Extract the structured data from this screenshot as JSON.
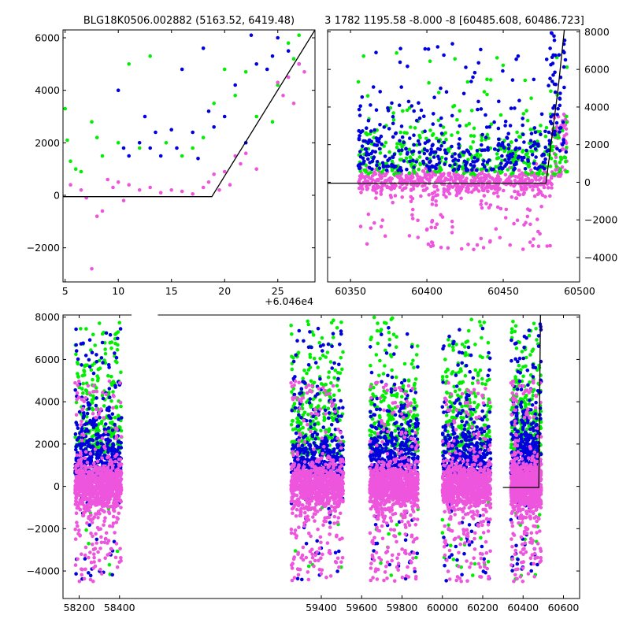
{
  "colors": {
    "green": "#00ee00",
    "blue": "#0000dd",
    "pink": "#ee55dd",
    "model": "#000000"
  },
  "chart_data": [
    {
      "type": "scatter",
      "title": "BLG18K0506.002882 (5163.52, 6419.48)",
      "xlim": [
        4.8,
        28.5
      ],
      "ylim": [
        -3300,
        6300
      ],
      "xticks": [
        5,
        10,
        15,
        20,
        25
      ],
      "yticks": [
        -2000,
        0,
        2000,
        4000,
        6000
      ],
      "x_offset_label": "+6.046e4",
      "model_line": [
        [
          4.8,
          -50
        ],
        [
          18.8,
          -50
        ],
        [
          28.5,
          6300
        ]
      ],
      "series": [
        {
          "color": "green",
          "points": [
            [
              5,
              3300
            ],
            [
              5.2,
              2100
            ],
            [
              5.5,
              1300
            ],
            [
              6,
              1000
            ],
            [
              6.5,
              900
            ],
            [
              7.5,
              2800
            ],
            [
              8,
              2200
            ],
            [
              8.5,
              1500
            ],
            [
              10,
              2000
            ],
            [
              11,
              5000
            ],
            [
              12,
              1800
            ],
            [
              13,
              5300
            ],
            [
              14.5,
              2000
            ],
            [
              16,
              1500
            ],
            [
              17,
              1800
            ],
            [
              18,
              2200
            ],
            [
              19,
              3500
            ],
            [
              20,
              4800
            ],
            [
              21,
              3800
            ],
            [
              22,
              4700
            ],
            [
              23,
              3000
            ],
            [
              24.5,
              2800
            ],
            [
              25,
              4200
            ],
            [
              26,
              5800
            ],
            [
              26.5,
              5200
            ],
            [
              27,
              6100
            ]
          ]
        },
        {
          "color": "blue",
          "points": [
            [
              10,
              4000
            ],
            [
              10.5,
              1800
            ],
            [
              11,
              1500
            ],
            [
              12,
              2000
            ],
            [
              12.5,
              3000
            ],
            [
              13,
              1800
            ],
            [
              13.5,
              2400
            ],
            [
              14,
              1500
            ],
            [
              15,
              2500
            ],
            [
              15.5,
              1800
            ],
            [
              16,
              4800
            ],
            [
              17,
              2400
            ],
            [
              17.5,
              1400
            ],
            [
              18,
              5600
            ],
            [
              18.5,
              3200
            ],
            [
              19,
              2600
            ],
            [
              20,
              3000
            ],
            [
              21,
              4200
            ],
            [
              22,
              2000
            ],
            [
              22.5,
              6100
            ],
            [
              23,
              5000
            ],
            [
              24,
              4800
            ],
            [
              24.5,
              5300
            ],
            [
              25,
              6000
            ],
            [
              26,
              5500
            ],
            [
              27,
              5000
            ]
          ]
        },
        {
          "color": "pink",
          "points": [
            [
              5.5,
              400
            ],
            [
              6.5,
              200
            ],
            [
              7,
              -100
            ],
            [
              7.5,
              -2800
            ],
            [
              8,
              -800
            ],
            [
              8.5,
              -600
            ],
            [
              9,
              600
            ],
            [
              9.5,
              300
            ],
            [
              10,
              500
            ],
            [
              10.5,
              -200
            ],
            [
              11,
              400
            ],
            [
              12,
              200
            ],
            [
              13,
              300
            ],
            [
              14,
              100
            ],
            [
              15,
              200
            ],
            [
              16,
              150
            ],
            [
              17,
              50
            ],
            [
              18,
              300
            ],
            [
              18.5,
              500
            ],
            [
              19,
              800
            ],
            [
              19.5,
              200
            ],
            [
              20,
              900
            ],
            [
              20.5,
              400
            ],
            [
              21,
              1500
            ],
            [
              21.5,
              1200
            ],
            [
              22,
              1600
            ],
            [
              23,
              1000
            ],
            [
              25,
              4300
            ],
            [
              25.5,
              3800
            ],
            [
              26,
              4500
            ],
            [
              26.5,
              3500
            ],
            [
              27,
              5000
            ],
            [
              27.5,
              4700
            ]
          ]
        }
      ]
    },
    {
      "type": "scatter",
      "title": "3 1782 1195.58 -8.000 -8 [60485.608, 60486.723]",
      "xlim": [
        60335,
        60500
      ],
      "ylim": [
        -5300,
        8100
      ],
      "xticks": [
        60350,
        60400,
        60450,
        60500
      ],
      "yticks": [
        -4000,
        -2000,
        0,
        2000,
        4000,
        6000,
        8000
      ],
      "model_line": [
        [
          60335,
          -50
        ],
        [
          60478,
          -50
        ],
        [
          60486,
          5000
        ],
        [
          60490,
          8100
        ]
      ],
      "cloud": {
        "x_range": [
          60355,
          60492
        ],
        "green_y": [
          0,
          4500
        ],
        "blue_y": [
          500,
          4500
        ],
        "pink_y": [
          -1500,
          700
        ]
      }
    },
    {
      "type": "scatter",
      "title": "",
      "xlim": [
        58120,
        60680
      ],
      "ylim": [
        -5300,
        8100
      ],
      "xticks": [
        58200,
        58400,
        59400,
        59600,
        59800,
        60000,
        60200,
        60400,
        60600
      ],
      "yticks": [
        -4000,
        -2000,
        0,
        2000,
        4000,
        6000,
        8000
      ],
      "seasons": [
        [
          58180,
          58410
        ],
        [
          59250,
          59510
        ],
        [
          59640,
          59880
        ],
        [
          60000,
          60240
        ],
        [
          60340,
          60490
        ]
      ],
      "model_line": [
        [
          60300,
          -50
        ],
        [
          60478,
          -50
        ],
        [
          60486,
          8100
        ]
      ]
    }
  ]
}
